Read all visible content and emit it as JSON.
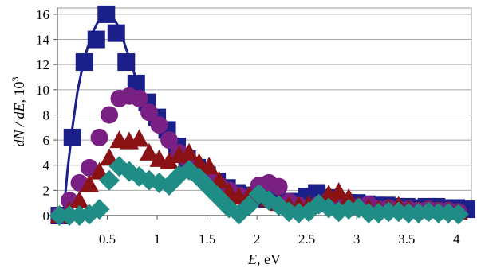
{
  "chart_data": {
    "type": "scatter",
    "xlabel_var": "E",
    "xlabel_unit": ", eV",
    "ylabel_var": "dN / dE",
    "ylabel_unit": ", 10",
    "ylabel_exp": "3",
    "xlim": [
      0,
      4.15
    ],
    "ylim": [
      0,
      16.5
    ],
    "x_ticks": [
      0.5,
      1,
      1.5,
      2,
      2.5,
      3,
      3.5,
      4
    ],
    "x_tick_labels": [
      "0.5",
      "1",
      "1.5",
      "2",
      "2.5",
      "3",
      "3.5",
      "4"
    ],
    "y_ticks": [
      0,
      2,
      4,
      6,
      8,
      10,
      12,
      14,
      16
    ],
    "y_tick_labels": [
      "0",
      "2",
      "4",
      "6",
      "8",
      "10",
      "12",
      "14",
      "16"
    ],
    "grid": true,
    "legend": "none",
    "series": [
      {
        "marker": "square",
        "color": "#1b1f8a",
        "x": [
          0.02,
          0.15,
          0.27,
          0.39,
          0.49,
          0.59,
          0.69,
          0.79,
          0.9,
          1.0,
          1.1,
          1.2,
          1.3,
          1.4,
          1.5,
          1.6,
          1.7,
          1.8,
          1.9,
          2.0,
          2.1,
          2.2,
          2.3,
          2.4,
          2.5,
          2.6,
          2.7,
          2.8,
          2.9,
          3.0,
          3.1,
          3.2,
          3.3,
          3.4,
          3.5,
          3.6,
          3.7,
          3.8,
          3.9,
          4.0,
          4.1
        ],
        "y": [
          0,
          6.2,
          12.2,
          14.0,
          16.0,
          14.5,
          12.2,
          10.5,
          9.0,
          7.8,
          6.8,
          5.5,
          4.5,
          3.8,
          3.2,
          2.7,
          2.2,
          1.8,
          1.6,
          1.4,
          1.3,
          1.2,
          1.1,
          1.1,
          1.5,
          1.8,
          1.4,
          1.1,
          1.0,
          1.0,
          0.9,
          0.8,
          0.8,
          0.7,
          0.7,
          0.6,
          0.7,
          0.7,
          0.6,
          0.6,
          0.5
        ]
      },
      {
        "marker": "circle",
        "color": "#7a1f83",
        "x": [
          0.02,
          0.12,
          0.22,
          0.32,
          0.42,
          0.52,
          0.62,
          0.72,
          0.82,
          0.92,
          1.02,
          1.12,
          1.22,
          1.32,
          1.42,
          1.52,
          1.62,
          1.72,
          1.82,
          1.92,
          2.02,
          2.12,
          2.22,
          2.32,
          2.42,
          2.52,
          2.62,
          2.72,
          2.82,
          2.92,
          3.02,
          3.12,
          3.22,
          3.32,
          3.42,
          3.52,
          3.62,
          3.72,
          3.82,
          3.92,
          4.02
        ],
        "y": [
          0,
          1.2,
          2.6,
          3.8,
          6.2,
          8.0,
          9.3,
          9.5,
          9.3,
          8.2,
          7.2,
          6.0,
          5.0,
          4.2,
          3.5,
          3.0,
          2.4,
          2.0,
          1.6,
          1.4,
          2.4,
          2.6,
          2.3,
          1.1,
          0.8,
          0.6,
          0.9,
          1.2,
          0.8,
          0.6,
          0.7,
          0.9,
          0.5,
          0.6,
          0.5,
          0.5,
          0.4,
          0.5,
          0.4,
          0.4,
          0.3
        ]
      },
      {
        "marker": "triangle",
        "color": "#8b1214",
        "x": [
          0.02,
          0.12,
          0.22,
          0.32,
          0.42,
          0.52,
          0.62,
          0.72,
          0.82,
          0.92,
          1.02,
          1.12,
          1.22,
          1.32,
          1.42,
          1.52,
          1.62,
          1.72,
          1.82,
          1.92,
          2.02,
          2.12,
          2.22,
          2.32,
          2.42,
          2.52,
          2.62,
          2.72,
          2.82,
          2.92,
          3.02,
          3.12,
          3.22,
          3.32,
          3.42,
          3.52,
          3.62,
          3.72,
          3.82,
          3.92,
          4.02
        ],
        "y": [
          0,
          0.4,
          1.2,
          2.5,
          3.5,
          4.6,
          6.0,
          5.9,
          6.1,
          5.0,
          4.5,
          4.3,
          4.8,
          5.0,
          4.2,
          3.9,
          2.8,
          1.9,
          1.5,
          1.6,
          1.8,
          1.3,
          1.0,
          0.8,
          0.8,
          0.9,
          1.0,
          1.7,
          1.9,
          1.4,
          0.8,
          0.6,
          0.5,
          0.6,
          0.8,
          0.5,
          0.4,
          0.5,
          0.4,
          0.4,
          0.3
        ]
      },
      {
        "marker": "diamond",
        "color": "#1f8c86",
        "x": [
          0.02,
          0.12,
          0.22,
          0.32,
          0.42,
          0.52,
          0.62,
          0.72,
          0.82,
          0.92,
          1.02,
          1.12,
          1.22,
          1.32,
          1.42,
          1.52,
          1.62,
          1.72,
          1.82,
          1.92,
          2.02,
          2.12,
          2.22,
          2.32,
          2.42,
          2.52,
          2.62,
          2.72,
          2.82,
          2.92,
          3.02,
          3.12,
          3.22,
          3.32,
          3.42,
          3.52,
          3.62,
          3.72,
          3.82,
          3.92,
          4.02
        ],
        "y": [
          0,
          0,
          0,
          0.1,
          0.5,
          2.8,
          3.9,
          3.5,
          3.1,
          2.8,
          2.6,
          2.4,
          3.2,
          3.6,
          3.0,
          2.2,
          1.4,
          0.6,
          0.1,
          0.8,
          1.7,
          1.2,
          0.8,
          0.3,
          0.2,
          0.3,
          0.9,
          0.6,
          0.3,
          0.5,
          0.6,
          0.2,
          0.2,
          0.3,
          0.3,
          0.2,
          0.2,
          0.3,
          0.2,
          0.2,
          0.1
        ]
      }
    ],
    "fit_curve": {
      "color": "#1b1f8a",
      "x": [
        0.06,
        0.1,
        0.15,
        0.2,
        0.25,
        0.3,
        0.35,
        0.4,
        0.45,
        0.5,
        0.55,
        0.6,
        0.65,
        0.7,
        0.75,
        0.8,
        0.85,
        0.9,
        0.95,
        1.0,
        1.1,
        1.2,
        1.3,
        1.4,
        1.5,
        1.6,
        1.8,
        2.0
      ],
      "y": [
        0,
        3.5,
        7.0,
        9.8,
        11.8,
        13.3,
        14.5,
        15.3,
        15.8,
        16.0,
        15.8,
        15.2,
        14.2,
        13.0,
        11.8,
        10.6,
        9.5,
        8.5,
        7.6,
        6.8,
        5.5,
        4.5,
        3.7,
        3.1,
        2.6,
        2.2,
        1.6,
        1.2
      ]
    }
  }
}
